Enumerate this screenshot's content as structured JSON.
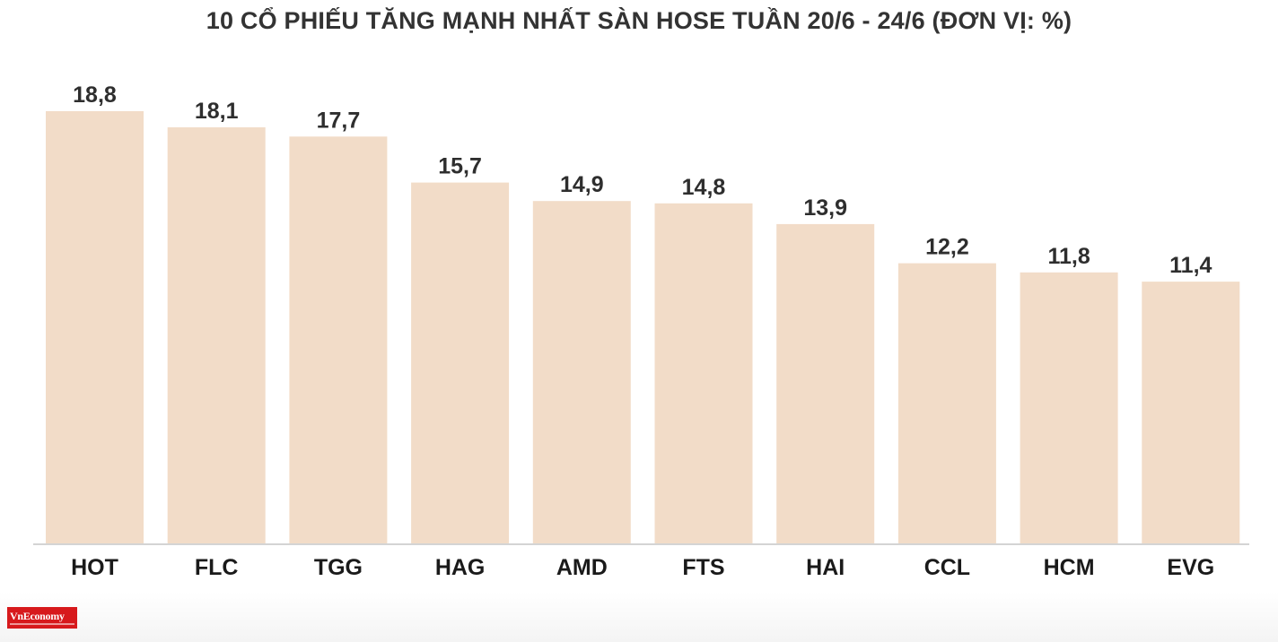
{
  "chart_data": {
    "type": "bar",
    "title": "10 CỔ PHIẾU TĂNG MẠNH NHẤT SÀN HOSE TUẦN 20/6 - 24/6 (ĐƠN VỊ: %)",
    "categories": [
      "HOT",
      "FLC",
      "TGG",
      "HAG",
      "AMD",
      "FTS",
      "HAI",
      "CCL",
      "HCM",
      "EVG"
    ],
    "values": [
      18.8,
      18.1,
      17.7,
      15.7,
      14.9,
      14.8,
      13.9,
      12.2,
      11.8,
      11.4
    ],
    "value_labels": [
      "18,8",
      "18,1",
      "17,7",
      "15,7",
      "14,9",
      "14,8",
      "13,9",
      "12,2",
      "11,8",
      "11,4"
    ],
    "xlabel": "",
    "ylabel": "",
    "ylim": [
      0,
      18.8
    ],
    "grid": false,
    "legend": "none",
    "bar_color": "#f2dcc8"
  },
  "logo": {
    "text": "VnEconomy"
  }
}
